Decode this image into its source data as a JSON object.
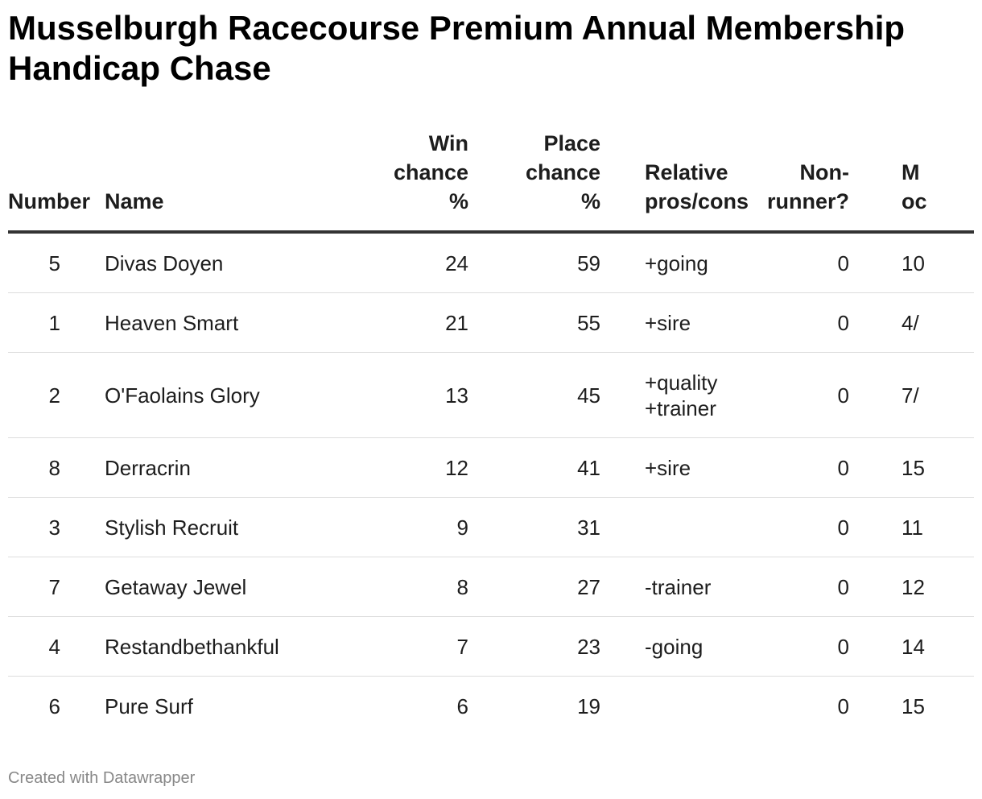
{
  "title": "Musselburgh Racecourse Premium Annual Membership Handicap Chase",
  "footer": "Created with Datawrapper",
  "chart_data": {
    "type": "table",
    "columns": [
      {
        "key": "number",
        "label": "Number"
      },
      {
        "key": "name",
        "label": "Name"
      },
      {
        "key": "win",
        "label": "Win chance %"
      },
      {
        "key": "place",
        "label": "Place chance %"
      },
      {
        "key": "pros",
        "label": "Relative pros/cons"
      },
      {
        "key": "nonrunner",
        "label": "Non-runner?"
      },
      {
        "key": "odds",
        "label": "Min odds"
      }
    ],
    "header_lines": {
      "number": [
        "Number"
      ],
      "name": [
        "Name"
      ],
      "win": [
        "Win",
        "chance",
        "%"
      ],
      "place": [
        "Place",
        "chance",
        "%"
      ],
      "pros": [
        "Relative",
        "pros/cons"
      ],
      "nonrunner": [
        "Non-",
        "runner?"
      ],
      "odds": [
        "M",
        "oc"
      ]
    },
    "rows": [
      {
        "number": "5",
        "name": "Divas Doyen",
        "win": "24",
        "place": "59",
        "pros": [
          "+going"
        ],
        "nonrunner": "0",
        "odds": "10"
      },
      {
        "number": "1",
        "name": "Heaven Smart",
        "win": "21",
        "place": "55",
        "pros": [
          "+sire"
        ],
        "nonrunner": "0",
        "odds": "4/"
      },
      {
        "number": "2",
        "name": "O'Faolains Glory",
        "win": "13",
        "place": "45",
        "pros": [
          "+quality",
          "+trainer"
        ],
        "nonrunner": "0",
        "odds": "7/"
      },
      {
        "number": "8",
        "name": "Derracrin",
        "win": "12",
        "place": "41",
        "pros": [
          "+sire"
        ],
        "nonrunner": "0",
        "odds": "15"
      },
      {
        "number": "3",
        "name": "Stylish Recruit",
        "win": "9",
        "place": "31",
        "pros": [],
        "nonrunner": "0",
        "odds": "11"
      },
      {
        "number": "7",
        "name": "Getaway Jewel",
        "win": "8",
        "place": "27",
        "pros": [
          "-trainer"
        ],
        "nonrunner": "0",
        "odds": "12"
      },
      {
        "number": "4",
        "name": "Restandbethankful",
        "win": "7",
        "place": "23",
        "pros": [
          "-going"
        ],
        "nonrunner": "0",
        "odds": "14"
      },
      {
        "number": "6",
        "name": "Pure Surf",
        "win": "6",
        "place": "19",
        "pros": [],
        "nonrunner": "0",
        "odds": "15"
      }
    ]
  }
}
